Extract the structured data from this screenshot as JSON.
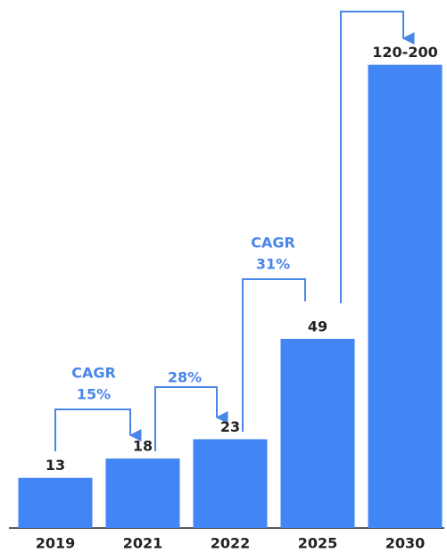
{
  "chart_data": {
    "type": "bar",
    "categories": [
      "2019",
      "2021",
      "2022",
      "2025",
      "2030"
    ],
    "values": [
      13,
      18,
      23,
      49,
      120
    ],
    "value_labels": [
      "13",
      "18",
      "23",
      "49",
      "120-200"
    ],
    "color": "#4285f4",
    "ylim": [
      0,
      125
    ],
    "annotations": [
      {
        "lines": [
          "CAGR",
          "15%"
        ]
      },
      {
        "lines": [
          "28%"
        ]
      },
      {
        "lines": [
          "CAGR",
          "31%"
        ]
      }
    ]
  }
}
